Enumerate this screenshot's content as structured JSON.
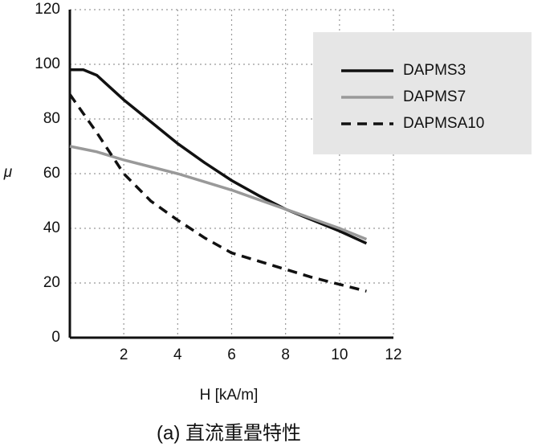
{
  "chart_data": {
    "type": "line",
    "x": [
      0,
      0.5,
      1,
      2,
      3,
      4,
      5,
      6,
      7,
      8,
      9,
      10,
      11
    ],
    "series": [
      {
        "name": "DAPMS3",
        "color": "#111111",
        "line_style": "solid",
        "values": [
          98,
          98,
          96,
          87,
          79,
          71,
          64,
          57.5,
          52,
          47,
          43,
          39,
          34.5
        ]
      },
      {
        "name": "DAPMS7",
        "color": "#999999",
        "line_style": "solid",
        "values": [
          70,
          69,
          68,
          65,
          62.5,
          60,
          57,
          54,
          50.5,
          47,
          43.5,
          40,
          36
        ]
      },
      {
        "name": "DAPMSA10",
        "color": "#111111",
        "line_style": "dashed",
        "values": [
          89,
          82,
          75,
          60,
          50,
          43,
          36.5,
          31,
          28,
          25,
          22,
          19.5,
          17
        ]
      }
    ],
    "xlim": [
      0,
      12
    ],
    "xticks": [
      2,
      4,
      6,
      8,
      10,
      12
    ],
    "ylim": [
      0,
      120
    ],
    "yticks": [
      0,
      20,
      40,
      60,
      80,
      100,
      120
    ],
    "grid": true,
    "grid_style": "dotted",
    "legend": "upper right",
    "xlabel": "H [kA/m]",
    "ylabel": "μ",
    "caption": "(a) 直流重畳特性"
  }
}
